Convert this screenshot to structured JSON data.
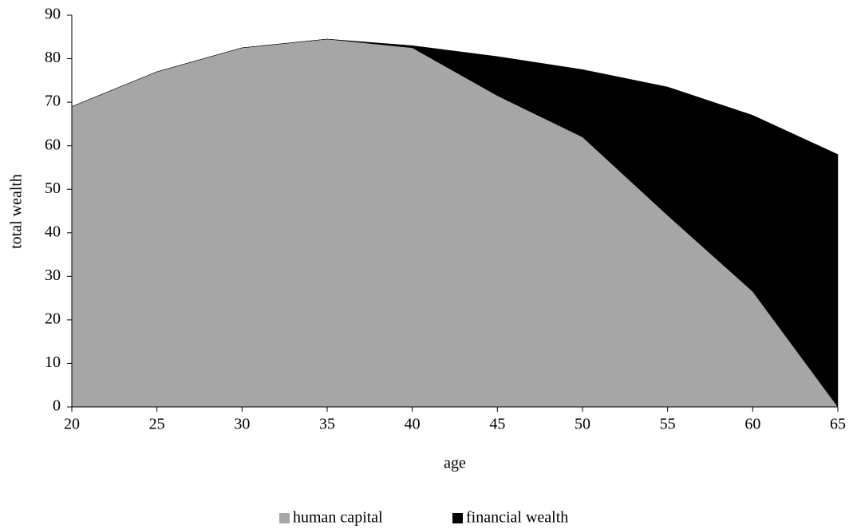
{
  "chart_data": {
    "type": "stacked_area",
    "x": [
      20,
      25,
      30,
      35,
      40,
      45,
      50,
      55,
      60,
      65
    ],
    "series": [
      {
        "name": "human capital",
        "color": "#a6a6a6",
        "values": [
          69,
          77,
          82.5,
          84.5,
          82.5,
          71.5,
          62,
          44,
          26.5,
          0
        ]
      },
      {
        "name": "financial wealth",
        "color": "#000000",
        "values": [
          0,
          0,
          0,
          0,
          0.5,
          9,
          15.5,
          29.5,
          40.5,
          58
        ]
      }
    ],
    "xlabel": "age",
    "ylabel": "total wealth",
    "xlim": [
      20,
      65
    ],
    "xticks": [
      20,
      25,
      30,
      35,
      40,
      45,
      50,
      55,
      60,
      65
    ],
    "ylim": [
      0,
      90
    ],
    "yticks": [
      0,
      10,
      20,
      30,
      40,
      50,
      60,
      70,
      80,
      90
    ],
    "grid": false,
    "legend": "bottom"
  }
}
